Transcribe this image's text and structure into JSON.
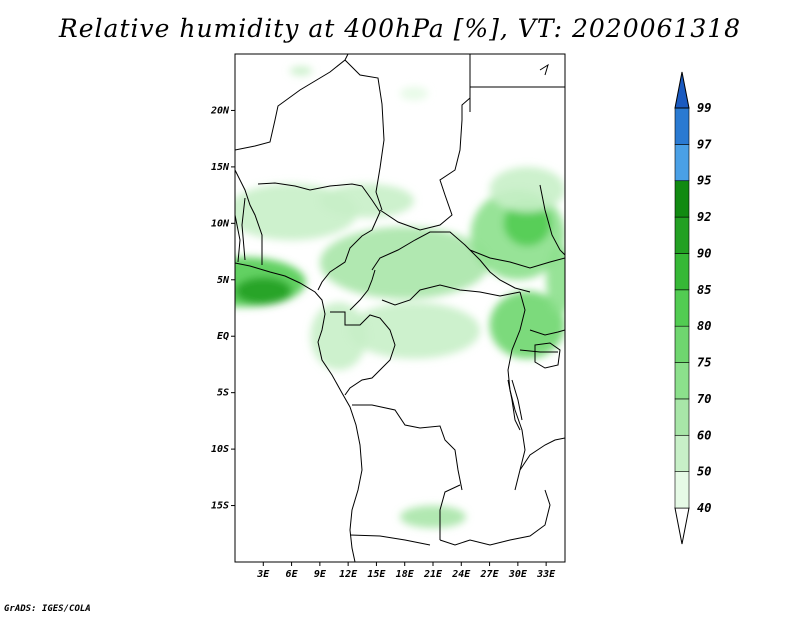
{
  "title": "Relative humidity at 400hPa [%], VT: 2020061318",
  "credit": "GrADS: IGES/COLA",
  "lat_ticks": [
    {
      "label": "20N",
      "value": 20
    },
    {
      "label": "15N",
      "value": 15
    },
    {
      "label": "10N",
      "value": 10
    },
    {
      "label": "5N",
      "value": 5
    },
    {
      "label": "EQ",
      "value": 0
    },
    {
      "label": "5S",
      "value": -5
    },
    {
      "label": "10S",
      "value": -10
    },
    {
      "label": "15S",
      "value": -15
    }
  ],
  "lon_ticks": [
    {
      "label": "3E",
      "value": 3
    },
    {
      "label": "6E",
      "value": 6
    },
    {
      "label": "9E",
      "value": 9
    },
    {
      "label": "12E",
      "value": 12
    },
    {
      "label": "15E",
      "value": 15
    },
    {
      "label": "18E",
      "value": 18
    },
    {
      "label": "21E",
      "value": 21
    },
    {
      "label": "24E",
      "value": 24
    },
    {
      "label": "27E",
      "value": 27
    },
    {
      "label": "30E",
      "value": 30
    },
    {
      "label": "33E",
      "value": 33
    }
  ],
  "extent": {
    "lon_min": 0,
    "lon_max": 35,
    "lat_min": -20,
    "lat_max": 25
  },
  "colorbar": {
    "levels": [
      {
        "label": "40",
        "color": "#e6fae6"
      },
      {
        "label": "50",
        "color": "#c8f0c8"
      },
      {
        "label": "60",
        "color": "#a8e6a8"
      },
      {
        "label": "70",
        "color": "#8ce08c"
      },
      {
        "label": "75",
        "color": "#6fd66f"
      },
      {
        "label": "80",
        "color": "#52cc52"
      },
      {
        "label": "85",
        "color": "#36b836"
      },
      {
        "label": "90",
        "color": "#23a023"
      },
      {
        "label": "92",
        "color": "#118a11"
      },
      {
        "label": "95",
        "color": "#4aa0e6"
      },
      {
        "label": "97",
        "color": "#2a7ad2"
      },
      {
        "label": "99",
        "color": "#1a5ac0"
      }
    ],
    "bottom_color": "#ffffff"
  },
  "field_regions": [
    {
      "name": "west-africa-coast",
      "lon": 1.0,
      "lat": 4.8,
      "rlon": 6.5,
      "rlat": 2.2,
      "level": 5
    },
    {
      "name": "gulf-of-guinea-core",
      "lon": 3.0,
      "lat": 4.0,
      "rlon": 3.0,
      "rlat": 1.2,
      "level": 7
    },
    {
      "name": "nigeria-plateau",
      "lon": 6.0,
      "lat": 11.0,
      "rlon": 7.0,
      "rlat": 2.5,
      "level": 1
    },
    {
      "name": "central-african-belt",
      "lon": 18.0,
      "lat": 6.5,
      "rlon": 9.0,
      "rlat": 3.2,
      "level": 2
    },
    {
      "name": "south-sudan-patch",
      "lon": 30.0,
      "lat": 9.0,
      "rlon": 5.0,
      "rlat": 4.0,
      "level": 3
    },
    {
      "name": "south-sudan-core",
      "lon": 31.0,
      "lat": 10.0,
      "rlon": 2.5,
      "rlat": 2.0,
      "level": 5
    },
    {
      "name": "sudan-north",
      "lon": 31.0,
      "lat": 13.0,
      "rlon": 4.0,
      "rlat": 2.0,
      "level": 1
    },
    {
      "name": "east-africa-uganda",
      "lon": 31.0,
      "lat": 1.0,
      "rlon": 4.0,
      "rlat": 3.0,
      "level": 4
    },
    {
      "name": "congo-basin",
      "lon": 19.0,
      "lat": 0.5,
      "rlon": 7.0,
      "rlat": 2.5,
      "level": 1
    },
    {
      "name": "gabon-coast",
      "lon": 11.0,
      "lat": 0.0,
      "rlon": 3.0,
      "rlat": 3.0,
      "level": 1
    },
    {
      "name": "chad-band",
      "lon": 14.0,
      "lat": 12.0,
      "rlon": 5.0,
      "rlat": 1.5,
      "level": 1
    },
    {
      "name": "zambia-south",
      "lon": 21.0,
      "lat": -16.0,
      "rlon": 3.5,
      "rlat": 1.0,
      "level": 2
    },
    {
      "name": "sahara-north",
      "lon": 7.0,
      "lat": 23.5,
      "rlon": 1.2,
      "rlat": 0.4,
      "level": 1
    },
    {
      "name": "libya-fleck",
      "lon": 19.0,
      "lat": 21.5,
      "rlon": 1.5,
      "rlat": 0.6,
      "level": 0
    },
    {
      "name": "ethiopia-edge",
      "lon": 34.5,
      "lat": 5.0,
      "rlon": 1.5,
      "rlat": 3.0,
      "level": 3
    }
  ]
}
